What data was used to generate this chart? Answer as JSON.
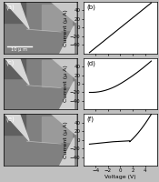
{
  "fig_bg": "#c0c0c0",
  "plot_bg": "#ffffff",
  "sem_bg": "#808080",
  "ylabel": "Current (μ A)",
  "xlabel": "Voltage (V)",
  "xlim": [
    -6,
    6
  ],
  "ylim_b": [
    -60,
    60
  ],
  "ylim_d": [
    -60,
    60
  ],
  "ylim_f": [
    -60,
    60
  ],
  "xticks": [
    -4,
    -2,
    0,
    2,
    4
  ],
  "yticks_b": [
    -40,
    -20,
    0,
    20,
    40
  ],
  "yticks_d": [
    -40,
    -20,
    0,
    20,
    40
  ],
  "yticks_f": [
    -40,
    -20,
    0,
    20,
    40
  ],
  "scale_bar_text": "10 μ m",
  "line_color": "#000000",
  "line_width": 0.8,
  "tick_fontsize": 4.0,
  "label_fontsize": 4.5,
  "panel_label_fontsize": 5.0
}
